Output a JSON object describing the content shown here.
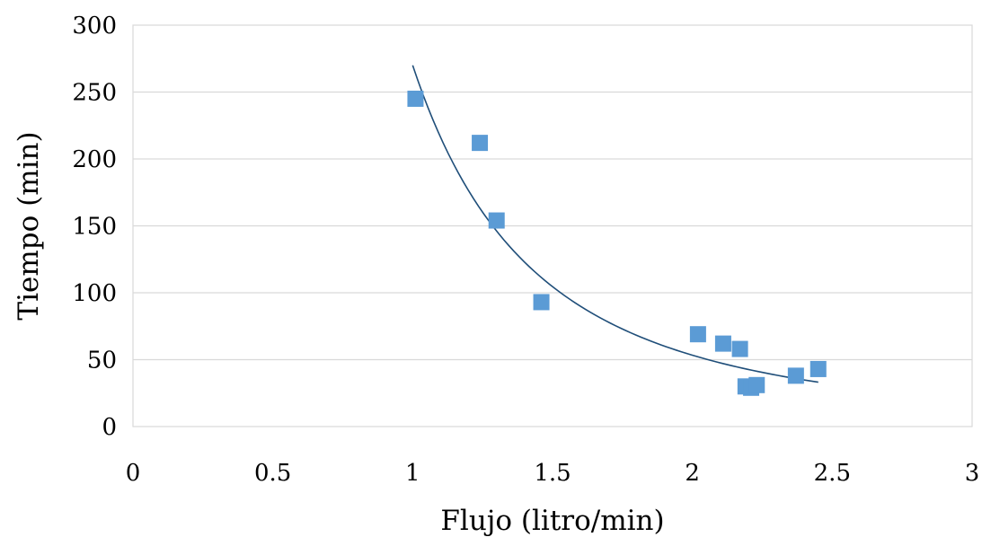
{
  "chart_data": {
    "type": "scatter",
    "title": "",
    "xlabel": "Flujo (litro/min)",
    "ylabel": "Tiempo (min)",
    "xlim": [
      0,
      3
    ],
    "ylim": [
      0,
      300
    ],
    "x_ticks": [
      "0",
      "0.5",
      "1",
      "1.5",
      "2",
      "2.5",
      "3"
    ],
    "y_ticks": [
      "0",
      "50",
      "100",
      "150",
      "200",
      "250",
      "300"
    ],
    "grid": "horizontal",
    "legend": "none",
    "series": [
      {
        "marker": "square",
        "color": "#5B9BD5",
        "points": [
          {
            "x": 1.01,
            "y": 245
          },
          {
            "x": 1.24,
            "y": 212
          },
          {
            "x": 1.3,
            "y": 154
          },
          {
            "x": 1.46,
            "y": 93
          },
          {
            "x": 2.02,
            "y": 69
          },
          {
            "x": 2.11,
            "y": 62
          },
          {
            "x": 2.17,
            "y": 58
          },
          {
            "x": 2.19,
            "y": 30
          },
          {
            "x": 2.21,
            "y": 29
          },
          {
            "x": 2.23,
            "y": 31
          },
          {
            "x": 2.37,
            "y": 38
          },
          {
            "x": 2.45,
            "y": 43
          }
        ]
      }
    ],
    "trendline": {
      "kind": "power",
      "color": "#1F4E79",
      "x_range": [
        1.0,
        2.45
      ],
      "coefficient": 270,
      "exponent": -2.34
    },
    "colors": {
      "grid": "#D9D9D9",
      "plot_border": "#D9D9D9"
    }
  }
}
